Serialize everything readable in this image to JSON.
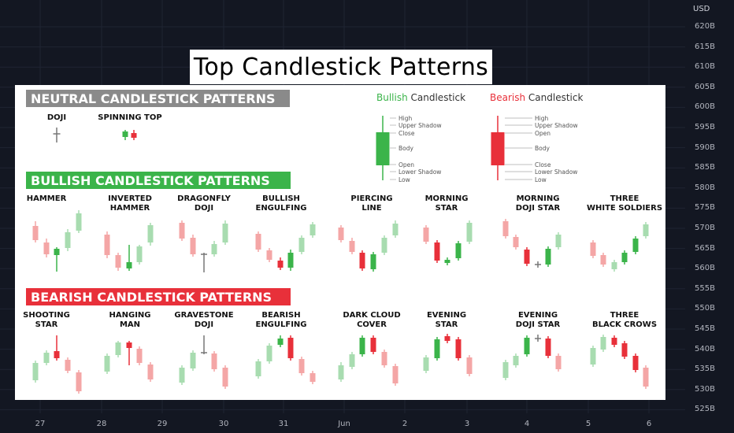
{
  "price_axis": {
    "currency": "USD",
    "labels": [
      "620B",
      "615B",
      "610B",
      "605B",
      "600B",
      "595B",
      "590B",
      "585B",
      "580B",
      "575B",
      "570B",
      "565B",
      "560B",
      "555B",
      "550B",
      "545B",
      "540B",
      "535B",
      "530B",
      "525B"
    ]
  },
  "time_axis": {
    "labels": [
      "27",
      "28",
      "29",
      "30",
      "31",
      "Jun",
      "2",
      "3",
      "4",
      "5",
      "6"
    ]
  },
  "title": "Top Candlestick Patterns",
  "colors": {
    "bullish": "#3bb44a",
    "bearish": "#e8303a",
    "bullish_light": "#a8dcb0",
    "bearish_light": "#f4a6a6",
    "neutral_banner": "#8a8a8a",
    "chart_bg": "#131722"
  },
  "neutral": {
    "banner": "NEUTRAL CANDLESTICK PATTERNS",
    "patterns": [
      "DOJI",
      "SPINNING TOP"
    ]
  },
  "legend": {
    "bullish_word": "Bullish",
    "bearish_word": "Bearish",
    "candlestick_word": " Candlestick",
    "parts": [
      "High",
      "Upper Shadow",
      "Close",
      "Body",
      "Open",
      "Lower Shadow",
      "Low"
    ],
    "bearish_parts": [
      "High",
      "Upper Shadow",
      "Open",
      "Body",
      "Close",
      "Lower Shadow",
      "Low"
    ]
  },
  "bullish": {
    "banner": "BULLISH CANDLESTICK PATTERNS",
    "patterns": [
      {
        "line1": "HAMMER",
        "line2": ""
      },
      {
        "line1": "INVERTED",
        "line2": "HAMMER"
      },
      {
        "line1": "DRAGONFLY",
        "line2": "DOJI"
      },
      {
        "line1": "BULLISH",
        "line2": "ENGULFING"
      },
      {
        "line1": "PIERCING",
        "line2": "LINE"
      },
      {
        "line1": "MORNING",
        "line2": "STAR"
      },
      {
        "line1": "MORNING",
        "line2": "DOJI STAR"
      },
      {
        "line1": "THREE",
        "line2": "WHITE SOLDIERS"
      }
    ]
  },
  "bearish": {
    "banner": "BEARISH CANDLESTICK PATTERNS",
    "patterns": [
      {
        "line1": "SHOOTING",
        "line2": "STAR"
      },
      {
        "line1": "HANGING",
        "line2": "MAN"
      },
      {
        "line1": "GRAVESTONE",
        "line2": "DOJI"
      },
      {
        "line1": "BEARISH",
        "line2": "ENGULFING"
      },
      {
        "line1": "DARK CLOUD",
        "line2": "COVER"
      },
      {
        "line1": "EVENING",
        "line2": "STAR"
      },
      {
        "line1": "EVENING",
        "line2": "DOJI STAR"
      },
      {
        "line1": "THREE",
        "line2": "BLACK CROWS"
      }
    ]
  }
}
